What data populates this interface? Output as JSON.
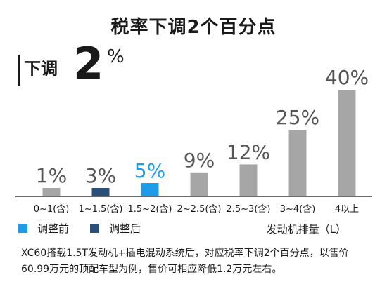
{
  "title": "税率下调2个百分点",
  "callout": {
    "label": "下调",
    "number": "2",
    "unit": "%"
  },
  "chart_data": {
    "type": "bar",
    "categories": [
      "0~1(含)",
      "1~1.5(含)",
      "1.5~2(含)",
      "2~2.5(含)",
      "2.5~3(含)",
      "3~4(含)",
      "4以上"
    ],
    "values": [
      1,
      3,
      5,
      9,
      12,
      25,
      40
    ],
    "value_labels": [
      "1%",
      "3%",
      "5%",
      "9%",
      "12%",
      "25%",
      "40%"
    ],
    "bar_status": [
      "unchanged",
      "after",
      "before",
      "unchanged",
      "unchanged",
      "unchanged",
      "unchanged"
    ],
    "xlabel": "发动机排量（L）",
    "ylim": [
      0,
      40
    ],
    "grid": false,
    "colors": {
      "before": "#1e9ce8",
      "after": "#2a4f78",
      "unchanged": "#a6a6a6"
    }
  },
  "legend": [
    {
      "label": "调整前",
      "color": "#1e9ce8"
    },
    {
      "label": "调整后",
      "color": "#2a4f78"
    }
  ],
  "caption": "XC60搭载1.5T发动机+插电混动系统后，对应税率下调2个百分点，以售价60.99万元的顶配车型为例，售价可相应降低1.2万元左右。"
}
